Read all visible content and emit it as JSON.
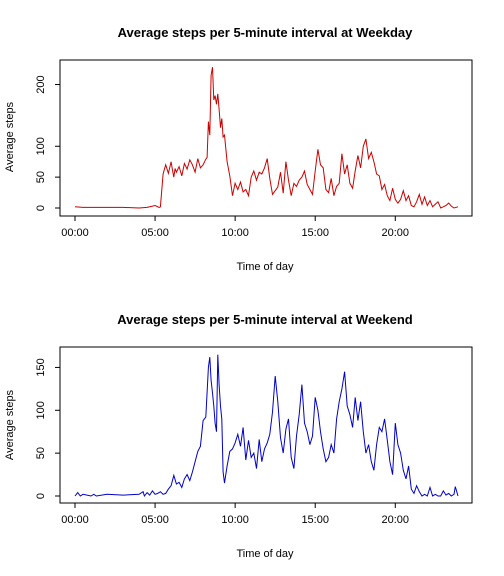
{
  "chart_data": [
    {
      "type": "line",
      "title": "Average steps per 5-minute interval at Weekday",
      "xlabel": "Time of day",
      "ylabel": "Average steps",
      "xlim": [
        0,
        1435
      ],
      "ylim": [
        0,
        230
      ],
      "x_ticks": [
        0,
        300,
        600,
        900,
        1200
      ],
      "x_tick_labels": [
        "00:00",
        "05:00",
        "10:00",
        "15:00",
        "20:00"
      ],
      "y_ticks": [
        0,
        50,
        100,
        200
      ],
      "y_tick_labels": [
        "0",
        "50",
        "100",
        "200"
      ],
      "grid": false,
      "series": [
        {
          "color": "#cc0000",
          "x": [
            0,
            30,
            60,
            120,
            180,
            240,
            270,
            300,
            315,
            320,
            330,
            340,
            350,
            360,
            365,
            370,
            375,
            380,
            390,
            400,
            410,
            420,
            430,
            440,
            450,
            460,
            470,
            480,
            490,
            495,
            500,
            505,
            510,
            515,
            520,
            525,
            530,
            535,
            540,
            545,
            550,
            555,
            560,
            570,
            580,
            590,
            600,
            610,
            620,
            630,
            640,
            650,
            660,
            670,
            680,
            690,
            700,
            710,
            720,
            730,
            740,
            750,
            760,
            770,
            780,
            790,
            800,
            810,
            820,
            830,
            840,
            850,
            860,
            870,
            880,
            890,
            900,
            910,
            920,
            930,
            940,
            950,
            960,
            970,
            980,
            990,
            1000,
            1010,
            1020,
            1030,
            1040,
            1050,
            1060,
            1070,
            1080,
            1090,
            1100,
            1110,
            1120,
            1130,
            1140,
            1150,
            1160,
            1170,
            1180,
            1190,
            1200,
            1210,
            1220,
            1230,
            1240,
            1250,
            1260,
            1270,
            1280,
            1290,
            1300,
            1310,
            1320,
            1330,
            1340,
            1350,
            1360,
            1370,
            1380,
            1390,
            1400,
            1410,
            1420,
            1435
          ],
          "y": [
            2,
            1,
            1,
            1,
            1,
            0,
            1,
            4,
            1,
            2,
            55,
            70,
            56,
            75,
            62,
            50,
            64,
            58,
            67,
            52,
            72,
            63,
            78,
            70,
            58,
            80,
            65,
            70,
            79,
            82,
            140,
            118,
            215,
            228,
            175,
            182,
            168,
            185,
            160,
            130,
            145,
            115,
            118,
            75,
            52,
            20,
            40,
            30,
            42,
            26,
            30,
            20,
            50,
            60,
            45,
            58,
            55,
            65,
            80,
            48,
            22,
            28,
            34,
            58,
            24,
            75,
            45,
            20,
            40,
            35,
            45,
            50,
            60,
            38,
            30,
            22,
            60,
            95,
            70,
            65,
            30,
            25,
            48,
            20,
            35,
            40,
            88,
            55,
            70,
            40,
            32,
            60,
            85,
            65,
            100,
            112,
            80,
            90,
            75,
            55,
            52,
            30,
            38,
            20,
            12,
            32,
            14,
            8,
            14,
            28,
            12,
            20,
            4,
            2,
            10,
            22,
            6,
            18,
            4,
            12,
            2,
            6,
            10,
            0,
            2,
            4,
            8,
            3,
            0,
            2
          ]
        }
      ]
    },
    {
      "type": "line",
      "title": "Average steps per 5-minute interval at Weekend",
      "xlabel": "Time of day",
      "ylabel": "Average steps",
      "xlim": [
        0,
        1435
      ],
      "ylim": [
        0,
        168
      ],
      "x_ticks": [
        0,
        300,
        600,
        900,
        1200
      ],
      "x_tick_labels": [
        "00:00",
        "05:00",
        "10:00",
        "15:00",
        "20:00"
      ],
      "y_ticks": [
        0,
        50,
        100,
        150
      ],
      "y_tick_labels": [
        "0",
        "50",
        "100",
        "150"
      ],
      "grid": false,
      "series": [
        {
          "color": "#0000cc",
          "x": [
            0,
            10,
            20,
            30,
            60,
            70,
            80,
            120,
            180,
            240,
            255,
            260,
            270,
            280,
            290,
            300,
            310,
            320,
            330,
            340,
            350,
            360,
            370,
            380,
            390,
            400,
            410,
            420,
            430,
            440,
            450,
            460,
            470,
            480,
            490,
            500,
            505,
            510,
            515,
            520,
            525,
            530,
            535,
            540,
            545,
            550,
            555,
            560,
            570,
            580,
            590,
            600,
            610,
            620,
            630,
            640,
            650,
            660,
            670,
            680,
            690,
            700,
            710,
            720,
            730,
            740,
            750,
            760,
            770,
            780,
            790,
            800,
            810,
            820,
            830,
            840,
            850,
            860,
            870,
            880,
            890,
            900,
            910,
            920,
            930,
            940,
            950,
            960,
            970,
            980,
            990,
            1000,
            1010,
            1020,
            1030,
            1040,
            1050,
            1060,
            1070,
            1080,
            1090,
            1100,
            1110,
            1120,
            1130,
            1140,
            1150,
            1160,
            1170,
            1180,
            1190,
            1200,
            1210,
            1220,
            1230,
            1240,
            1250,
            1260,
            1270,
            1280,
            1290,
            1300,
            1310,
            1320,
            1330,
            1340,
            1350,
            1360,
            1370,
            1380,
            1390,
            1400,
            1410,
            1420,
            1425,
            1435
          ],
          "y": [
            0,
            4,
            0,
            2,
            0,
            2,
            0,
            2,
            1,
            2,
            5,
            0,
            4,
            1,
            6,
            2,
            3,
            5,
            2,
            3,
            8,
            12,
            24,
            14,
            16,
            10,
            20,
            25,
            18,
            28,
            40,
            52,
            58,
            88,
            92,
            150,
            162,
            135,
            120,
            105,
            85,
            75,
            165,
            130,
            105,
            90,
            28,
            15,
            35,
            52,
            55,
            62,
            72,
            58,
            80,
            42,
            65,
            45,
            50,
            32,
            66,
            40,
            55,
            62,
            72,
            98,
            140,
            110,
            68,
            50,
            78,
            90,
            45,
            32,
            70,
            95,
            130,
            85,
            75,
            60,
            70,
            115,
            100,
            75,
            55,
            40,
            45,
            60,
            50,
            90,
            110,
            125,
            145,
            105,
            95,
            80,
            115,
            88,
            110,
            75,
            50,
            60,
            40,
            30,
            60,
            80,
            75,
            90,
            65,
            40,
            25,
            85,
            60,
            50,
            30,
            20,
            35,
            8,
            3,
            12,
            5,
            0,
            2,
            0,
            10,
            0,
            2,
            0,
            0,
            6,
            1,
            3,
            0,
            2,
            11,
            0
          ]
        }
      ]
    }
  ]
}
